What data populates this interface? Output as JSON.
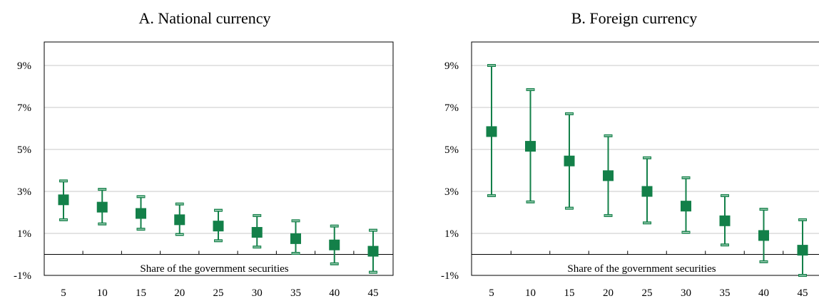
{
  "colors": {
    "accent": "#138049"
  },
  "chart_data": [
    {
      "type": "scatter",
      "title": "A. National currency",
      "xlabel": "Share of the government securities",
      "ylabel": "",
      "categories": [
        "5",
        "10",
        "15",
        "20",
        "25",
        "30",
        "35",
        "40",
        "45"
      ],
      "x": [
        5,
        10,
        15,
        20,
        25,
        30,
        35,
        40,
        45
      ],
      "y_ticks": [
        "-1%",
        "1%",
        "3%",
        "5%",
        "7%",
        "9%"
      ],
      "y_tick_values": [
        -1,
        1,
        3,
        5,
        7,
        9
      ],
      "ylim": [
        -1,
        10
      ],
      "grid": true,
      "series": [
        {
          "values": [
            2.6,
            2.25,
            1.95,
            1.65,
            1.35,
            1.05,
            0.75,
            0.45,
            0.15
          ],
          "lower": [
            1.65,
            1.45,
            1.2,
            0.95,
            0.65,
            0.35,
            0.05,
            -0.45,
            -0.85
          ],
          "upper": [
            3.5,
            3.1,
            2.75,
            2.4,
            2.1,
            1.85,
            1.6,
            1.35,
            1.15
          ]
        }
      ]
    },
    {
      "type": "scatter",
      "title": "B. Foreign currency",
      "xlabel": "Share of the government securities",
      "ylabel": "",
      "categories": [
        "5",
        "10",
        "15",
        "20",
        "25",
        "30",
        "35",
        "40",
        "45"
      ],
      "x": [
        5,
        10,
        15,
        20,
        25,
        30,
        35,
        40,
        45
      ],
      "y_ticks": [
        "-1%",
        "1%",
        "3%",
        "5%",
        "7%",
        "9%"
      ],
      "y_tick_values": [
        -1,
        1,
        3,
        5,
        7,
        9
      ],
      "ylim": [
        -1,
        10
      ],
      "grid": true,
      "series": [
        {
          "values": [
            5.85,
            5.15,
            4.45,
            3.75,
            3.0,
            2.3,
            1.6,
            0.9,
            0.2
          ],
          "lower": [
            2.8,
            2.5,
            2.2,
            1.85,
            1.5,
            1.05,
            0.45,
            -0.35,
            -1.0
          ],
          "upper": [
            9.0,
            7.85,
            6.7,
            5.65,
            4.6,
            3.65,
            2.8,
            2.15,
            1.65
          ]
        }
      ]
    }
  ]
}
